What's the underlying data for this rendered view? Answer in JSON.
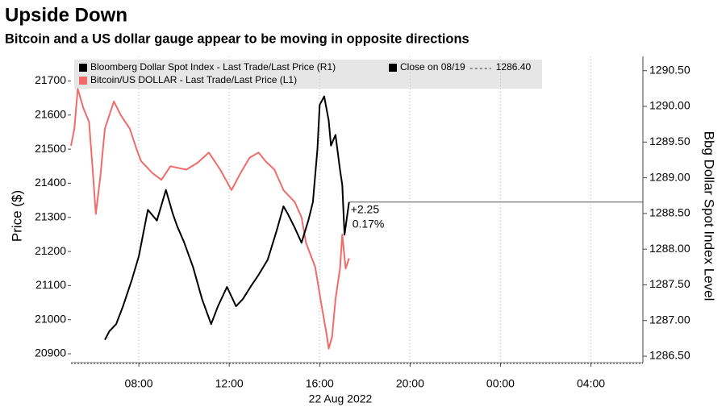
{
  "chart_data": {
    "type": "line",
    "title": "Upside Down",
    "subtitle": "Bitcoin and a US dollar gauge appear to be moving in opposite directions",
    "y_label": "Price ($)",
    "y2_label": "Bbg Dollar Spot Index Level",
    "x_sublabel": "22 Aug 2022",
    "xlim": [
      5,
      30.3
    ],
    "xticks": [
      {
        "value": 8,
        "label": "08:00"
      },
      {
        "value": 12,
        "label": "12:00"
      },
      {
        "value": 16,
        "label": "16:00"
      },
      {
        "value": 20,
        "label": "20:00"
      },
      {
        "value": 24,
        "label": "00:00"
      },
      {
        "value": 28,
        "label": "04:00"
      }
    ],
    "ylim": [
      20874,
      21772
    ],
    "yticks": [
      20900,
      21000,
      21100,
      21200,
      21300,
      21400,
      21500,
      21600,
      21700
    ],
    "y2lim": [
      1286.41,
      1290.7
    ],
    "y2ticks": [
      {
        "value": 1286.5,
        "label": "1286.50"
      },
      {
        "value": 1287,
        "label": "1287.00"
      },
      {
        "value": 1287.5,
        "label": "1287.50"
      },
      {
        "value": 1288,
        "label": "1288.00"
      },
      {
        "value": 1288.5,
        "label": "1288.50"
      },
      {
        "value": 1289,
        "label": "1289.00"
      },
      {
        "value": 1289.5,
        "label": "1289.50"
      },
      {
        "value": 1290,
        "label": "1290.00"
      },
      {
        "value": 1290.5,
        "label": "1290.50"
      }
    ],
    "grid": "x",
    "series": [
      {
        "name": "Bloomberg Dollar Spot Index - Last Trade/Last Price (R1)",
        "color": "#000000",
        "axis": "y2",
        "x": [
          6.5,
          6.7,
          7.0,
          7.3,
          7.7,
          8.0,
          8.4,
          8.8,
          9.2,
          9.5,
          9.7,
          10.0,
          10.4,
          10.8,
          11.2,
          11.5,
          11.9,
          12.3,
          12.6,
          13.0,
          13.3,
          13.7,
          14.1,
          14.4,
          14.6,
          14.9,
          15.2,
          15.5,
          15.7,
          15.9,
          16.0,
          16.2,
          16.4,
          16.5,
          16.7,
          16.9,
          17.0,
          17.1,
          17.3
        ],
        "values": [
          1286.73,
          1286.85,
          1286.95,
          1287.2,
          1287.58,
          1287.9,
          1288.55,
          1288.4,
          1288.83,
          1288.5,
          1288.32,
          1288.1,
          1287.75,
          1287.3,
          1286.95,
          1287.2,
          1287.47,
          1287.2,
          1287.3,
          1287.5,
          1287.64,
          1287.85,
          1288.26,
          1288.6,
          1288.49,
          1288.3,
          1288.09,
          1288.4,
          1288.66,
          1289.4,
          1290.02,
          1290.14,
          1289.8,
          1289.45,
          1289.6,
          1289.11,
          1288.9,
          1288.2,
          1288.66
        ]
      },
      {
        "name": "Bitcoin/US DOLLAR - Last Trade/Last Price (L1)",
        "color": "#f26b6b",
        "axis": "y",
        "x": [
          5.0,
          5.15,
          5.3,
          5.55,
          5.8,
          5.95,
          6.1,
          6.3,
          6.5,
          6.7,
          6.9,
          7.2,
          7.6,
          7.9,
          8.1,
          8.6,
          9.0,
          9.4,
          10.1,
          10.6,
          11.1,
          11.6,
          12.1,
          12.5,
          12.9,
          13.3,
          13.6,
          14.0,
          14.4,
          14.9,
          15.2,
          15.4,
          15.8,
          16.1,
          16.3,
          16.4,
          16.55,
          16.7,
          16.9,
          17.0,
          17.15,
          17.3
        ],
        "values": [
          21510,
          21560,
          21677,
          21620,
          21580,
          21450,
          21310,
          21420,
          21560,
          21600,
          21640,
          21600,
          21560,
          21500,
          21465,
          21430,
          21410,
          21450,
          21440,
          21460,
          21490,
          21440,
          21380,
          21430,
          21475,
          21490,
          21465,
          21440,
          21380,
          21345,
          21300,
          21225,
          21155,
          21035,
          20960,
          20915,
          20950,
          21060,
          21150,
          21250,
          21150,
          21180
        ]
      }
    ],
    "reference": {
      "label": "Close on 08/19",
      "value": 1286.4,
      "value_label": "1286.40"
    },
    "change_labels": [
      "+2.25",
      "0.17%"
    ]
  }
}
